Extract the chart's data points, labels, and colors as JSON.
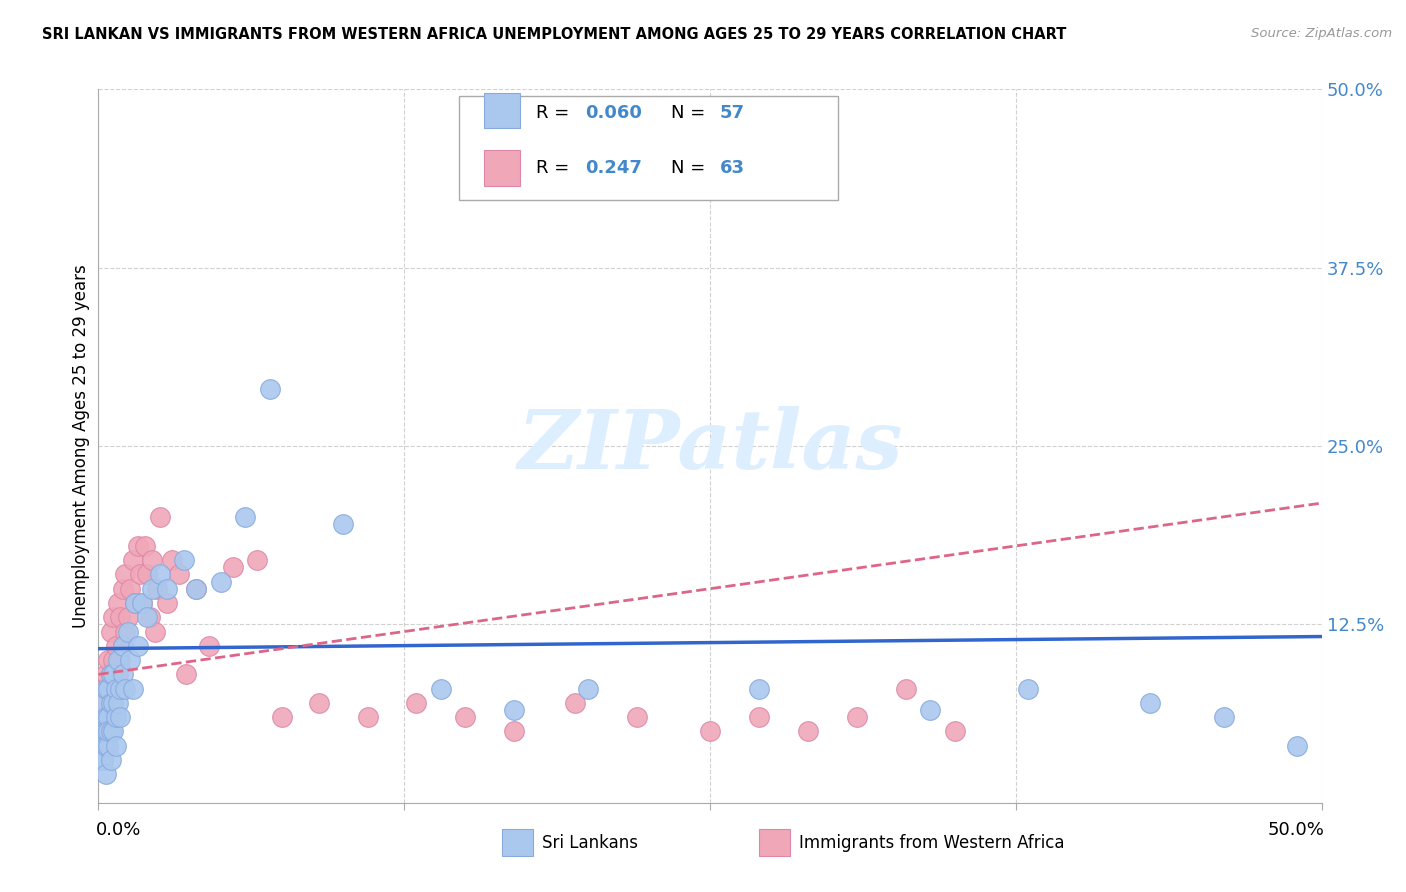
{
  "title": "SRI LANKAN VS IMMIGRANTS FROM WESTERN AFRICA UNEMPLOYMENT AMONG AGES 25 TO 29 YEARS CORRELATION CHART",
  "source": "Source: ZipAtlas.com",
  "ylabel": "Unemployment Among Ages 25 to 29 years",
  "ytick_vals": [
    0.0,
    0.125,
    0.25,
    0.375,
    0.5
  ],
  "ytick_labels": [
    "",
    "12.5%",
    "25.0%",
    "37.5%",
    "50.0%"
  ],
  "blue_R": "0.060",
  "blue_N": "57",
  "pink_R": "0.247",
  "pink_N": "63",
  "blue_scatter_color": "#aac8ee",
  "pink_scatter_color": "#f0a8b8",
  "blue_edge_color": "#88aadd",
  "pink_edge_color": "#dd88aa",
  "blue_line_color": "#3366cc",
  "pink_line_color": "#dd6688",
  "blue_line_intercept": 0.108,
  "blue_line_slope": 0.017,
  "pink_line_intercept": 0.09,
  "pink_line_slope": 0.24,
  "watermark_color": "#ddeeff",
  "grid_color": "#cccccc",
  "tick_color": "#4488cc",
  "sri_lankan_x": [
    0.001,
    0.001,
    0.002,
    0.002,
    0.002,
    0.002,
    0.003,
    0.003,
    0.003,
    0.003,
    0.003,
    0.004,
    0.004,
    0.004,
    0.004,
    0.005,
    0.005,
    0.005,
    0.005,
    0.006,
    0.006,
    0.006,
    0.007,
    0.007,
    0.007,
    0.008,
    0.008,
    0.009,
    0.009,
    0.01,
    0.01,
    0.011,
    0.012,
    0.013,
    0.014,
    0.015,
    0.016,
    0.018,
    0.02,
    0.022,
    0.025,
    0.028,
    0.035,
    0.04,
    0.05,
    0.06,
    0.07,
    0.1,
    0.14,
    0.17,
    0.2,
    0.27,
    0.34,
    0.38,
    0.43,
    0.46,
    0.49
  ],
  "sri_lankan_y": [
    0.05,
    0.03,
    0.06,
    0.04,
    0.07,
    0.03,
    0.06,
    0.05,
    0.08,
    0.04,
    0.02,
    0.06,
    0.04,
    0.08,
    0.05,
    0.07,
    0.05,
    0.09,
    0.03,
    0.07,
    0.05,
    0.09,
    0.06,
    0.08,
    0.04,
    0.07,
    0.1,
    0.08,
    0.06,
    0.09,
    0.11,
    0.08,
    0.12,
    0.1,
    0.08,
    0.14,
    0.11,
    0.14,
    0.13,
    0.15,
    0.16,
    0.15,
    0.17,
    0.15,
    0.155,
    0.2,
    0.29,
    0.195,
    0.08,
    0.065,
    0.08,
    0.08,
    0.065,
    0.08,
    0.07,
    0.06,
    0.04
  ],
  "western_africa_x": [
    0.001,
    0.001,
    0.002,
    0.002,
    0.002,
    0.003,
    0.003,
    0.003,
    0.004,
    0.004,
    0.004,
    0.005,
    0.005,
    0.005,
    0.006,
    0.006,
    0.006,
    0.007,
    0.007,
    0.008,
    0.008,
    0.009,
    0.009,
    0.01,
    0.01,
    0.011,
    0.011,
    0.012,
    0.013,
    0.014,
    0.015,
    0.016,
    0.017,
    0.018,
    0.019,
    0.02,
    0.021,
    0.022,
    0.023,
    0.024,
    0.025,
    0.028,
    0.03,
    0.033,
    0.036,
    0.04,
    0.045,
    0.055,
    0.065,
    0.075,
    0.09,
    0.11,
    0.13,
    0.15,
    0.17,
    0.195,
    0.22,
    0.25,
    0.27,
    0.29,
    0.31,
    0.33,
    0.35
  ],
  "western_africa_y": [
    0.04,
    0.06,
    0.05,
    0.08,
    0.03,
    0.07,
    0.09,
    0.04,
    0.06,
    0.08,
    0.1,
    0.05,
    0.09,
    0.12,
    0.07,
    0.1,
    0.13,
    0.08,
    0.11,
    0.09,
    0.14,
    0.1,
    0.13,
    0.11,
    0.15,
    0.12,
    0.16,
    0.13,
    0.15,
    0.17,
    0.14,
    0.18,
    0.16,
    0.14,
    0.18,
    0.16,
    0.13,
    0.17,
    0.12,
    0.15,
    0.2,
    0.14,
    0.17,
    0.16,
    0.09,
    0.15,
    0.11,
    0.165,
    0.17,
    0.06,
    0.07,
    0.06,
    0.07,
    0.06,
    0.05,
    0.07,
    0.06,
    0.05,
    0.06,
    0.05,
    0.06,
    0.08,
    0.05
  ]
}
